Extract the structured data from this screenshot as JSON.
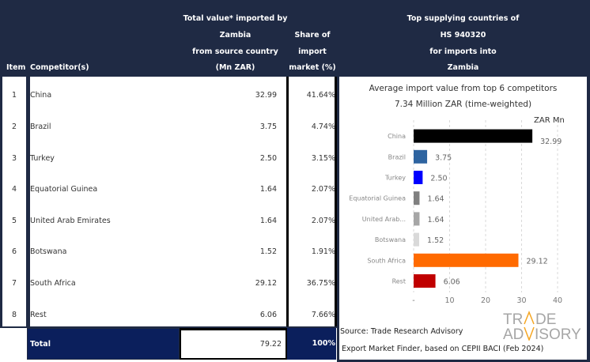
{
  "header": {
    "item": "Item",
    "competitors": "Competitor(s)",
    "value_lines": [
      "Total value* imported by",
      "Zambia",
      "from source country",
      "(Mn ZAR)"
    ],
    "share_lines": [
      "Share of",
      "import",
      "market (%)"
    ],
    "chart_lines": [
      "Top supplying countries of",
      "HS 940320",
      "for imports into",
      "Zambia"
    ]
  },
  "rows": [
    {
      "item": "1",
      "name": "China",
      "value": "32.99",
      "share": "41.64%"
    },
    {
      "item": "2",
      "name": "Brazil",
      "value": "3.75",
      "share": "4.74%"
    },
    {
      "item": "3",
      "name": "Turkey",
      "value": "2.50",
      "share": "3.15%"
    },
    {
      "item": "4",
      "name": "Equatorial Guinea",
      "value": "1.64",
      "share": "2.07%"
    },
    {
      "item": "5",
      "name": "United Arab Emirates",
      "value": "1.64",
      "share": "2.07%"
    },
    {
      "item": "6",
      "name": "Botswana",
      "value": "1.52",
      "share": "1.91%"
    },
    {
      "item": "7",
      "name": "South Africa",
      "value": "29.12",
      "share": "36.75%"
    },
    {
      "item": "8",
      "name": "Rest",
      "value": "6.06",
      "share": "7.66%"
    }
  ],
  "total": {
    "label": "Total",
    "value": "79.22",
    "share": "100%"
  },
  "source": {
    "line1": "Source: Trade Research Advisory",
    "line2": "Export Market Finder, based on CEPII BACI (Feb 2024)"
  },
  "logo": {
    "line1": "TRADE",
    "line2": "ADVISORY",
    "accent": "#f5a623"
  },
  "chart_data": {
    "type": "bar",
    "orientation": "horizontal",
    "title": "Average import value from top 6 competitors",
    "subtitle": "7.34 Million ZAR (time-weighted)",
    "unit_label": "ZAR Mn",
    "categories": [
      "China",
      "Brazil",
      "Turkey",
      "Equatorial Guinea",
      "United Arab...",
      "Botswana",
      "South Africa",
      "Rest"
    ],
    "values": [
      32.99,
      3.75,
      2.5,
      1.64,
      1.64,
      1.52,
      29.12,
      6.06
    ],
    "value_labels": [
      "32.99",
      "3.75",
      "2.50",
      "1.64",
      "1.64",
      "1.52",
      "29.12",
      "6.06"
    ],
    "colors": [
      "#000000",
      "#2e64a0",
      "#0000ff",
      "#808080",
      "#a6a6a6",
      "#d9d9d9",
      "#ff6a00",
      "#c00000"
    ],
    "xticks": [
      "-",
      "10",
      "20",
      "30",
      "40"
    ],
    "xlim": [
      0,
      40
    ],
    "grid": true,
    "legend": "none"
  }
}
